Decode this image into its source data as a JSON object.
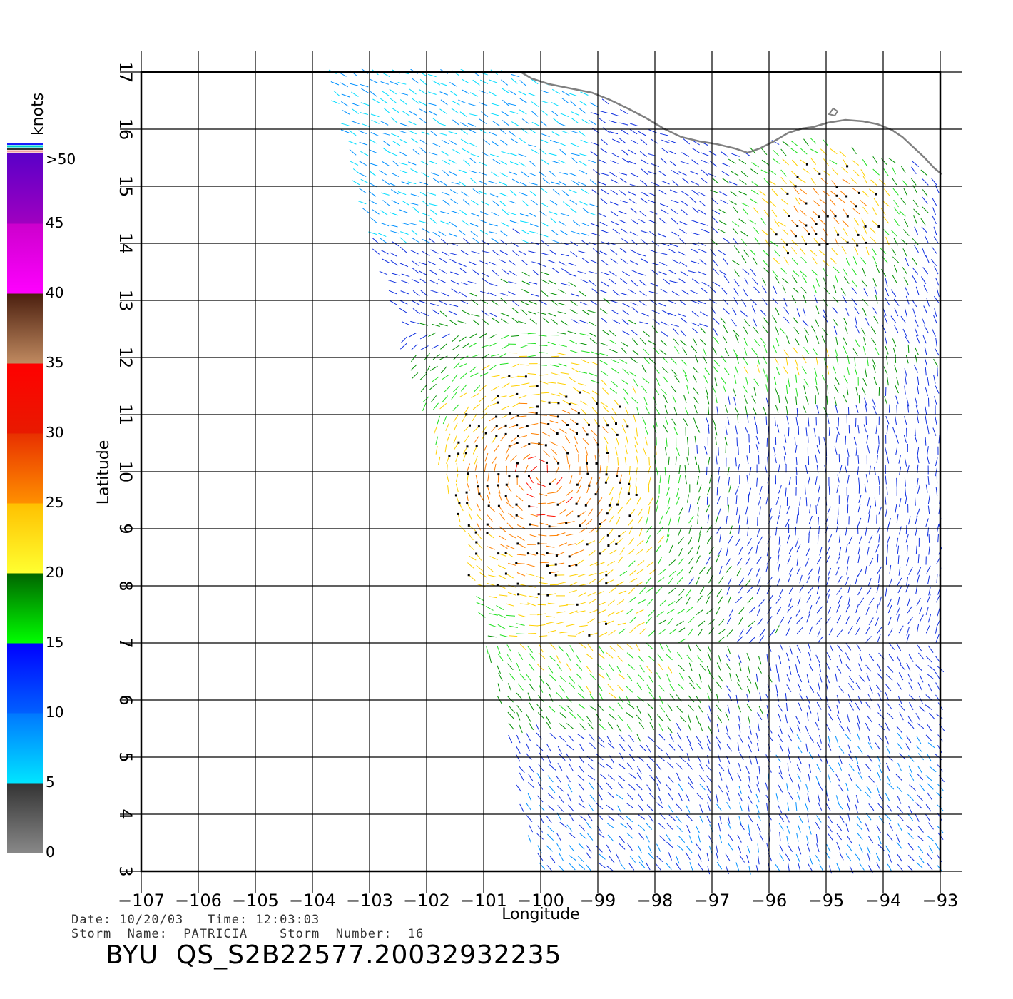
{
  "map": {
    "lon_ticks": [
      "−107",
      "−106",
      "−105",
      "−104",
      "−103",
      "−102",
      "−101",
      "−100",
      "−99",
      "−98",
      "−97",
      "−96",
      "−95",
      "−94",
      "−93"
    ],
    "lat_ticks": [
      "3",
      "4",
      "5",
      "6",
      "7",
      "8",
      "9",
      "10",
      "11",
      "12",
      "13",
      "14",
      "15",
      "16",
      "17"
    ],
    "lon_range": [
      -107,
      -93
    ],
    "lat_range": [
      3,
      17
    ],
    "x_title": "Longitude",
    "y_title": "Latitude",
    "grid": true,
    "coastline_color": "#808080"
  },
  "legend": {
    "title": "knots",
    "labels": [
      ">50",
      "45",
      "40",
      "35",
      "30",
      "25",
      "20",
      "15",
      "10",
      "5",
      "0"
    ],
    "bands": [
      {
        "from": 0,
        "to": 5,
        "top": "#333333",
        "bottom": "#888888"
      },
      {
        "from": 5,
        "to": 10,
        "top": "#0077ff",
        "bottom": "#00e5ff"
      },
      {
        "from": 10,
        "to": 15,
        "top": "#0000ff",
        "bottom": "#0060ff"
      },
      {
        "from": 15,
        "to": 20,
        "top": "#006400",
        "bottom": "#00ff00"
      },
      {
        "from": 20,
        "to": 25,
        "top": "#ffc000",
        "bottom": "#ffff30"
      },
      {
        "from": 25,
        "to": 30,
        "top": "#e83000",
        "bottom": "#ff9000"
      },
      {
        "from": 30,
        "to": 35,
        "top": "#ff0000",
        "bottom": "#e81a00"
      },
      {
        "from": 35,
        "to": 40,
        "top": "#4a1e0e",
        "bottom": "#c08a60"
      },
      {
        "from": 40,
        "to": 45,
        "top": "#cc00cc",
        "bottom": "#ff00ff"
      },
      {
        "from": 45,
        "to": 50,
        "top": "#5a00c8",
        "bottom": "#a000c0"
      }
    ]
  },
  "meta": {
    "line1": "Date: 10/20/03   Time: 12:03:03",
    "line2": "Storm  Name:  PATRICIA    Storm  Number:  16",
    "product": "BYU  QS_S2B22577.20032932235"
  }
}
